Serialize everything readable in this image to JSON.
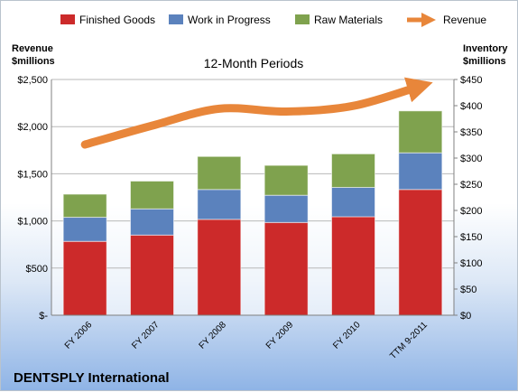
{
  "chart_data": {
    "type": "bar",
    "stacked": true,
    "title": "12-Month Periods",
    "company": "DENTSPLY International",
    "left_axis_label": [
      "Revenue",
      "$millions"
    ],
    "right_axis_label": [
      "Inventory",
      "$millions"
    ],
    "categories": [
      "FY 2006",
      "FY 2007",
      "FY 2008",
      "FY 2009",
      "FY 2010",
      "TTM 9-2011"
    ],
    "left_ticks": [
      "$-",
      "$500",
      "$1,000",
      "$1,500",
      "$2,000",
      "$2,500"
    ],
    "left_ylim": [
      0,
      2500
    ],
    "right_ticks": [
      "$0",
      "$50",
      "$100",
      "$150",
      "$200",
      "$250",
      "$300",
      "$350",
      "$400",
      "$450"
    ],
    "right_ylim": [
      0,
      450
    ],
    "series": [
      {
        "name": "Finished Goods",
        "axis": "right",
        "color": "#cc2a2a",
        "values": [
          141,
          153,
          183,
          177,
          188,
          240
        ]
      },
      {
        "name": "Work in Progress",
        "axis": "right",
        "color": "#5b82bd",
        "values": [
          46,
          50,
          57,
          52,
          56,
          70
        ]
      },
      {
        "name": "Raw Materials",
        "axis": "right",
        "color": "#7fa24e",
        "values": [
          44,
          53,
          63,
          57,
          64,
          80
        ]
      }
    ],
    "line": {
      "name": "Revenue",
      "axis": "left",
      "color": "#e8863a",
      "values": [
        1810,
        2010,
        2190,
        2160,
        2220,
        2430
      ]
    },
    "grid": true,
    "legend_position": "top"
  }
}
